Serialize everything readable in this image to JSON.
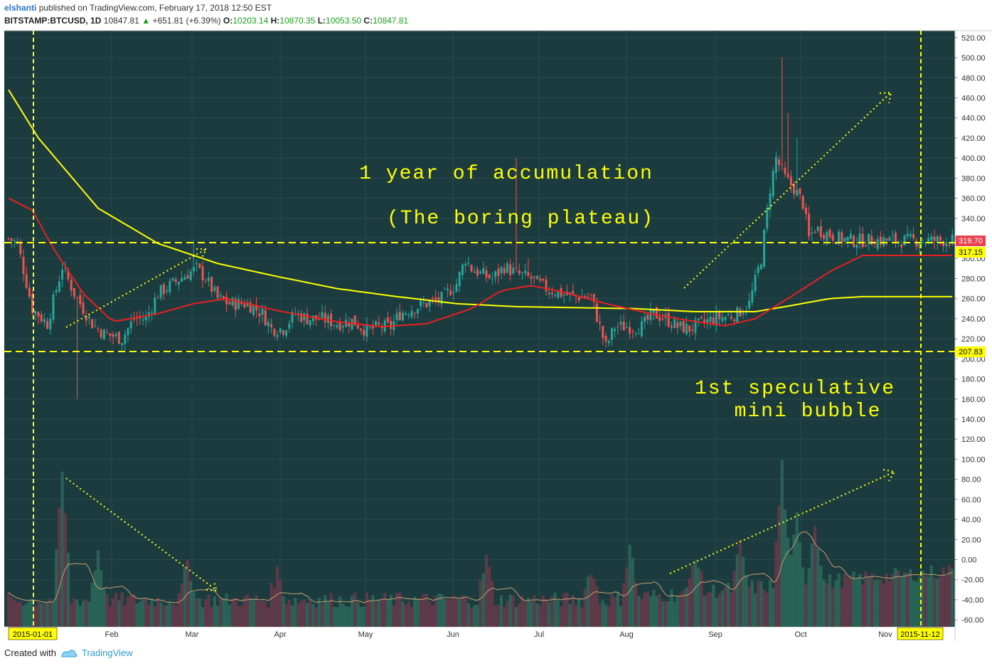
{
  "header": {
    "author": "elshanti",
    "published_text": "published on TradingView.com, February 17, 2018 12:50 EST",
    "symbol": "BITSTAMP:BTCUSD, 1D",
    "last": "10847.81",
    "up_arrow": "▲",
    "change": "+651.81 (+6.39%)",
    "o_label": "O:",
    "o_value": "10203.14",
    "h_label": "H:",
    "h_value": "10870.35",
    "l_label": "L:",
    "l_value": "10053.50",
    "c_label": "C:",
    "c_value": "10847.81"
  },
  "footer": {
    "created_with": "Created with",
    "brand": "TradingView"
  },
  "chart_data": {
    "type": "candlestick",
    "x_ticks": [
      "Feb",
      "Mar",
      "Apr",
      "May",
      "Jun",
      "Jul",
      "Aug",
      "Sep",
      "Oct",
      "Nov"
    ],
    "y_ticks": [
      "520.00",
      "500.00",
      "480.00",
      "460.00",
      "440.00",
      "420.00",
      "400.00",
      "380.00",
      "360.00",
      "340.00",
      "320.00",
      "300.00",
      "280.00",
      "260.00",
      "240.00",
      "220.00",
      "200.00",
      "180.00",
      "160.00",
      "140.00",
      "120.00",
      "100.00",
      "80.00",
      "60.00",
      "40.00",
      "20.00",
      "0.00",
      "-20.00",
      "-40.00",
      "-60.00"
    ],
    "ylim": [
      -67,
      527
    ],
    "date_markers": [
      "2015-01-01",
      "2015-11-12"
    ],
    "price_labels": [
      {
        "value": 319.7,
        "text": "319.70",
        "color": "#e8414f"
      },
      {
        "value": 317.15,
        "text": "317.15",
        "color": "#ffff00"
      },
      {
        "value": 207.83,
        "text": "207.83",
        "color": "#ffff00"
      }
    ],
    "annotations": [
      "1 year of accumulation",
      "(The boring plateau)",
      "1st speculative",
      "mini bubble"
    ],
    "close_path": [
      [
        0,
        320
      ],
      [
        3,
        315
      ],
      [
        8,
        250
      ],
      [
        13,
        235
      ],
      [
        18,
        292
      ],
      [
        22,
        265
      ],
      [
        28,
        235
      ],
      [
        32,
        225
      ],
      [
        38,
        220
      ],
      [
        42,
        240
      ],
      [
        46,
        240
      ],
      [
        50,
        265
      ],
      [
        55,
        275
      ],
      [
        60,
        285
      ],
      [
        63,
        290
      ],
      [
        66,
        280
      ],
      [
        70,
        260
      ],
      [
        74,
        255
      ],
      [
        80,
        255
      ],
      [
        85,
        245
      ],
      [
        88,
        230
      ],
      [
        92,
        230
      ],
      [
        96,
        245
      ],
      [
        100,
        240
      ],
      [
        105,
        240
      ],
      [
        110,
        235
      ],
      [
        115,
        238
      ],
      [
        120,
        228
      ],
      [
        124,
        232
      ],
      [
        128,
        232
      ],
      [
        131,
        245
      ],
      [
        135,
        250
      ],
      [
        140,
        255
      ],
      [
        145,
        260
      ],
      [
        150,
        275
      ],
      [
        153,
        300
      ],
      [
        155,
        290
      ],
      [
        158,
        285
      ],
      [
        162,
        280
      ],
      [
        166,
        292
      ],
      [
        170,
        285
      ],
      [
        175,
        280
      ],
      [
        180,
        270
      ],
      [
        185,
        265
      ],
      [
        190,
        262
      ],
      [
        195,
        262
      ],
      [
        200,
        212
      ],
      [
        203,
        232
      ],
      [
        208,
        232
      ],
      [
        212,
        232
      ],
      [
        216,
        245
      ],
      [
        220,
        240
      ],
      [
        224,
        232
      ],
      [
        228,
        230
      ],
      [
        232,
        235
      ],
      [
        236,
        240
      ],
      [
        240,
        242
      ],
      [
        244,
        245
      ],
      [
        248,
        255
      ],
      [
        252,
        300
      ],
      [
        255,
        370
      ],
      [
        257,
        400
      ],
      [
        260,
        380
      ],
      [
        263,
        370
      ],
      [
        266,
        355
      ],
      [
        268,
        320
      ],
      [
        270,
        330
      ],
      [
        274,
        325
      ],
      [
        278,
        320
      ],
      [
        282,
        318
      ],
      [
        286,
        318
      ]
    ],
    "ma_long": [
      [
        0,
        468
      ],
      [
        10,
        420
      ],
      [
        30,
        350
      ],
      [
        50,
        315
      ],
      [
        70,
        295
      ],
      [
        90,
        282
      ],
      [
        110,
        270
      ],
      [
        130,
        262
      ],
      [
        150,
        255
      ],
      [
        170,
        252
      ],
      [
        190,
        251
      ],
      [
        210,
        250
      ],
      [
        230,
        247
      ],
      [
        250,
        247
      ],
      [
        260,
        252
      ],
      [
        275,
        260
      ],
      [
        286,
        262
      ]
    ],
    "ma_short": [
      [
        0,
        360
      ],
      [
        8,
        348
      ],
      [
        15,
        310
      ],
      [
        25,
        265
      ],
      [
        35,
        237
      ],
      [
        50,
        245
      ],
      [
        62,
        255
      ],
      [
        73,
        260
      ],
      [
        90,
        248
      ],
      [
        110,
        237
      ],
      [
        125,
        232
      ],
      [
        140,
        235
      ],
      [
        155,
        250
      ],
      [
        165,
        268
      ],
      [
        175,
        273
      ],
      [
        185,
        267
      ],
      [
        200,
        255
      ],
      [
        215,
        245
      ],
      [
        228,
        238
      ],
      [
        240,
        233
      ],
      [
        250,
        240
      ],
      [
        262,
        262
      ],
      [
        275,
        287
      ],
      [
        286,
        303
      ]
    ],
    "spikes": [
      [
        21,
        265
      ],
      [
        23,
        160
      ],
      [
        62,
        318
      ],
      [
        170,
        400
      ],
      [
        174,
        300
      ],
      [
        259,
        500
      ],
      [
        261,
        445
      ],
      [
        264,
        420
      ]
    ]
  }
}
